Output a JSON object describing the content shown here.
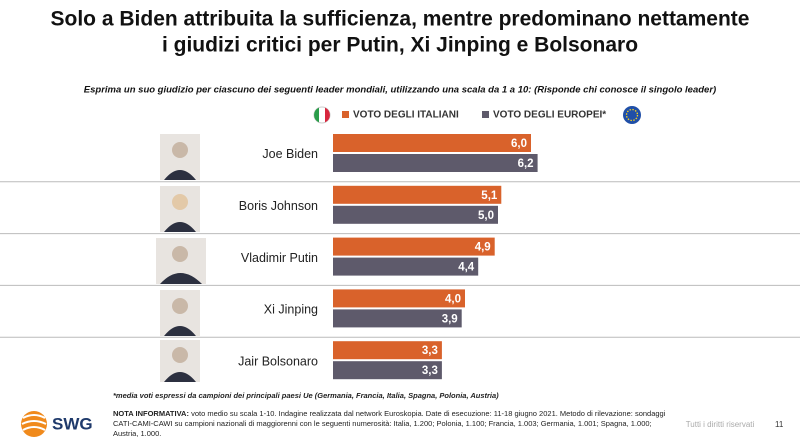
{
  "chart_data": {
    "type": "bar",
    "orientation": "horizontal",
    "title_lines": [
      "Solo a Biden attribuita la sufficienza, mentre predominano nettamente",
      "i giudizi critici per Putin, Xi Jinping e Bolsonaro"
    ],
    "subtitle": "Esprima un suo giudizio per ciascuno dei seguenti leader mondiali, utilizzando una scala da 1 a 10: (Risponde chi conosce il singolo leader)",
    "categories": [
      "Joe Biden",
      "Boris Johnson",
      "Vladimir Putin",
      "Xi Jinping",
      "Jair Bolsonaro"
    ],
    "series": [
      {
        "name": "VOTO DEGLI ITALIANI",
        "color": "#d9622b",
        "values": [
          6.0,
          5.1,
          4.9,
          4.0,
          3.3
        ],
        "value_labels": [
          "6,0",
          "5,1",
          "4,9",
          "4,0",
          "3,3"
        ]
      },
      {
        "name": "VOTO DEGLI EUROPEI*",
        "color": "#5e5a6b",
        "values": [
          6.2,
          5.0,
          4.4,
          3.9,
          3.3
        ],
        "value_labels": [
          "6,2",
          "5,0",
          "4,4",
          "3,9",
          "3,3"
        ]
      }
    ]
  },
  "footnote": "*media voti espressi da campioni dei principali paesi Ue (Germania, Francia, Italia, Spagna, Polonia, Austria)",
  "note": {
    "label": "NOTA INFORMATIVA:",
    "text": "voto medio su scala 1-10. Indagine realizzata dal network Euroskopia. Date di esecuzione: 11-18 giugno 2021. Metodo di rilevazione: sondaggi CATI-CAMI-CAWI su campioni nazionali di maggiorenni con le seguenti numerosità: Italia, 1.200; Polonia, 1.100; Francia, 1.003; Germania, 1.001; Spagna, 1.000; Austria, 1.000."
  },
  "logo": "SWG",
  "rights": "Tutti i diritti riservati",
  "page": "11"
}
